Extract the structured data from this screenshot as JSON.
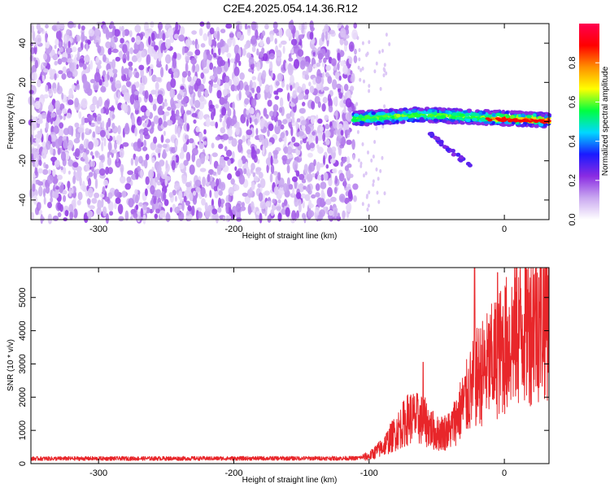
{
  "title": "C2E4.2025.054.14.36.R12",
  "colors": {
    "cb_stops": [
      "#ffffff",
      "#c9a8f0",
      "#8a2be2",
      "#1a1aff",
      "#00d8ff",
      "#00ff40",
      "#ffff00",
      "#ff9000",
      "#ff0000",
      "#ff0050"
    ],
    "snr_line": "#e8262a",
    "axis": "#000000"
  },
  "chart_data": [
    {
      "type": "heatmap",
      "xlabel": "Height of straight line (km)",
      "ylabel": "Frequency (Hz)",
      "xlim": [
        -350,
        33
      ],
      "ylim": [
        -50,
        50
      ],
      "xticks": [
        -300,
        -200,
        -100,
        0
      ],
      "yticks": [
        -40,
        -20,
        0,
        20,
        40
      ],
      "colorbar": {
        "label": "Normalized spectral amplitude",
        "range": [
          0,
          1
        ],
        "ticks": [
          0,
          0.2,
          0.4,
          0.6,
          0.8
        ]
      },
      "regions": [
        {
          "name": "noise",
          "x": [
            -350,
            -110
          ],
          "y": [
            -50,
            50
          ],
          "amplitude": [
            0.05,
            0.2
          ]
        },
        {
          "name": "main-signal",
          "x": [
            -112,
            33
          ],
          "y": [
            -3,
            7
          ],
          "amplitude": [
            0.3,
            0.95
          ]
        },
        {
          "name": "secondary-branch",
          "x": [
            -55,
            -25
          ],
          "y": [
            -24,
            -10
          ],
          "amplitude": [
            0.2,
            0.3
          ]
        }
      ]
    },
    {
      "type": "line",
      "name": "snr",
      "xlabel": "Height of straight line (km)",
      "ylabel": "SNR (10 * v/v)",
      "xlim": [
        -350,
        33
      ],
      "ylim": [
        0,
        5900
      ],
      "xticks": [
        -300,
        -200,
        -100,
        0
      ],
      "yticks": [
        0,
        1000,
        2000,
        3000,
        4000,
        5000
      ],
      "series": [
        {
          "name": "SNR",
          "trend_x": [
            -350,
            -110,
            -100,
            -90,
            -70,
            -60,
            -50,
            -40,
            -30,
            -20,
            -10,
            0,
            10,
            20,
            33
          ],
          "trend_y": [
            150,
            160,
            220,
            500,
            1400,
            1300,
            900,
            1000,
            1800,
            2600,
            3000,
            3500,
            4000,
            4300,
            4700
          ],
          "spikes": [
            {
              "x": -22,
              "y": 5900
            },
            {
              "x": -5,
              "y": 5750
            },
            {
              "x": -60,
              "y": 3050
            }
          ]
        }
      ]
    }
  ]
}
